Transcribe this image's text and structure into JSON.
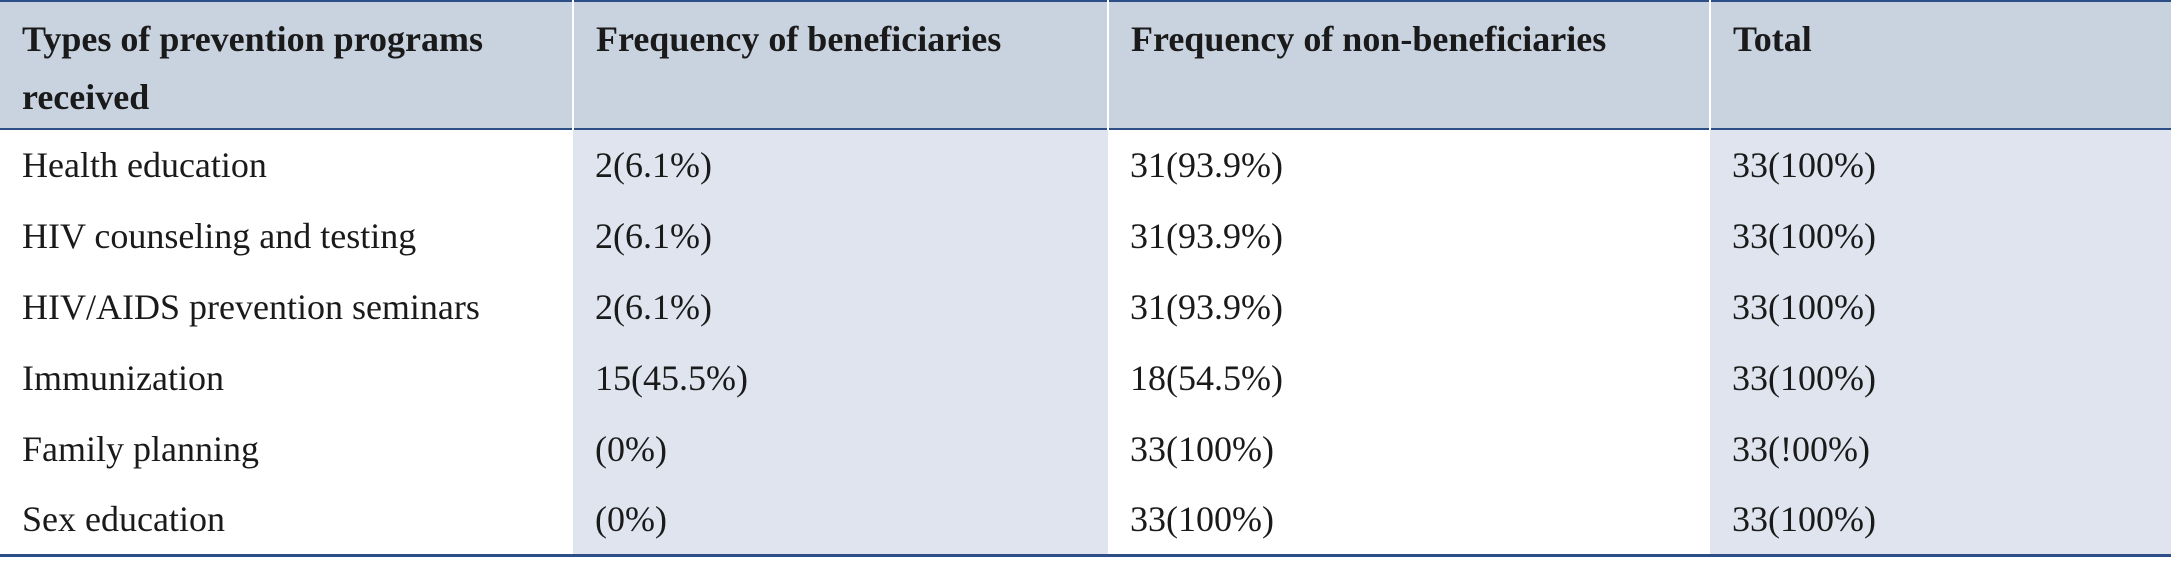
{
  "table": {
    "headers": [
      "Types of prevention programs received",
      "Frequency of beneficiaries",
      "Frequency of non-beneficiaries",
      "Total"
    ],
    "rows": [
      [
        "Health education",
        "2(6.1%)",
        "31(93.9%)",
        "33(100%)"
      ],
      [
        "HIV counseling and testing",
        "2(6.1%)",
        "31(93.9%)",
        "33(100%)"
      ],
      [
        "HIV/AIDS prevention seminars",
        "2(6.1%)",
        "31(93.9%)",
        "33(100%)"
      ],
      [
        "Immunization",
        "15(45.5%)",
        "18(54.5%)",
        "33(100%)"
      ],
      [
        "Family planning",
        "(0%)",
        "33(100%)",
        "33(!00%)"
      ],
      [
        "Sex education",
        "(0%)",
        "33(100%)",
        "33(100%)"
      ]
    ]
  },
  "colors": {
    "header_bg": "#c9d3e0",
    "shaded_column_bg": "#dfe4ee",
    "rule": "#2d4e86"
  }
}
